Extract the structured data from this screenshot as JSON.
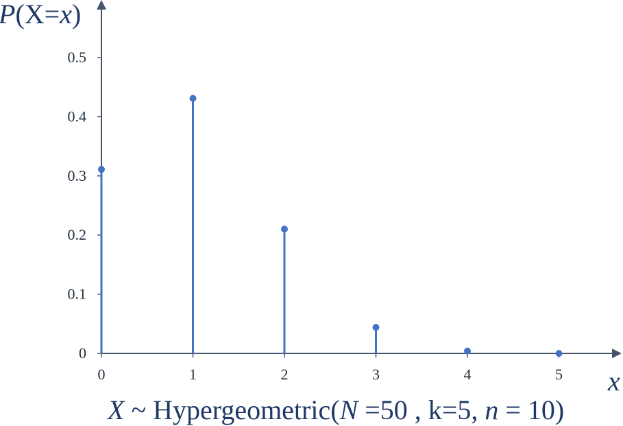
{
  "chart_data": {
    "type": "stem",
    "title_parts": {
      "X": "X",
      "tilde": " ~ Hypergeometric(",
      "N": "N",
      "n_eq": " =50 , k=5, ",
      "n": "n",
      "tail": " = 10)"
    },
    "ylabel_parts": {
      "P": "P",
      "open": "(X=",
      "x": "x",
      "close": ")"
    },
    "xlabel": "x",
    "x": [
      0,
      1,
      2,
      3,
      4,
      5
    ],
    "values": [
      0.311,
      0.431,
      0.21,
      0.044,
      0.004,
      0.0
    ],
    "xlim": [
      0,
      5.5
    ],
    "ylim": [
      0,
      0.58
    ],
    "yticks": [
      0,
      0.1,
      0.2,
      0.3,
      0.4,
      0.5
    ],
    "ytick_labels": [
      "0",
      "0.1",
      "0.2",
      "0.3",
      "0.4",
      "0.5"
    ],
    "xtick_labels": [
      "0",
      "1",
      "2",
      "3",
      "4",
      "5"
    ],
    "grid": false,
    "colors": {
      "series": "#4472c4",
      "axis": "#44546a",
      "text": "#1f3864"
    }
  }
}
